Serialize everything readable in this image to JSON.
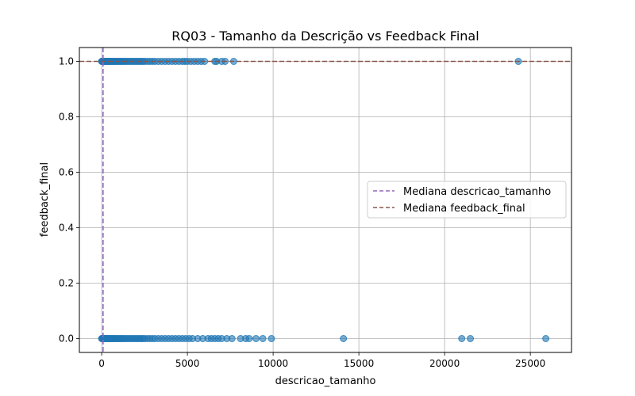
{
  "chart_data": {
    "type": "scatter",
    "title": "RQ03 - Tamanho da Descrição vs Feedback Final",
    "xlabel": "descricao_tamanho",
    "ylabel": "feedback_final",
    "xlim": [
      -1300,
      27400
    ],
    "ylim": [
      -0.05,
      1.05
    ],
    "xticks": [
      0,
      5000,
      10000,
      15000,
      20000,
      25000
    ],
    "xtick_labels": [
      "0",
      "5000",
      "10000",
      "15000",
      "20000",
      "25000"
    ],
    "yticks": [
      0.0,
      0.2,
      0.4,
      0.6,
      0.8,
      1.0
    ],
    "ytick_labels": [
      "0.0",
      "0.2",
      "0.4",
      "0.6",
      "0.8",
      "1.0"
    ],
    "grid": true,
    "legend_placement": "center-right",
    "series": [
      {
        "label": "",
        "color": "#1f77b4",
        "points_feedback_1": [
          0,
          20,
          50,
          80,
          120,
          160,
          200,
          250,
          300,
          350,
          400,
          450,
          500,
          560,
          620,
          680,
          740,
          800,
          870,
          940,
          1000,
          1080,
          1160,
          1240,
          1320,
          1400,
          1500,
          1600,
          1700,
          1800,
          1900,
          2000,
          2100,
          2200,
          2300,
          2400,
          2500,
          2650,
          2800,
          2950,
          3100,
          3300,
          3500,
          3700,
          3900,
          4100,
          4300,
          4500,
          4700,
          4850,
          5000,
          5200,
          5400,
          5600,
          5800,
          6000,
          6600,
          6700,
          7000,
          7200,
          7700,
          24300
        ],
        "points_feedback_0": [
          0,
          20,
          50,
          80,
          120,
          160,
          200,
          250,
          300,
          350,
          400,
          450,
          500,
          560,
          620,
          680,
          740,
          800,
          870,
          940,
          1000,
          1080,
          1160,
          1240,
          1320,
          1400,
          1500,
          1600,
          1700,
          1800,
          1900,
          2000,
          2100,
          2200,
          2300,
          2400,
          2500,
          2650,
          2800,
          2950,
          3100,
          3300,
          3500,
          3700,
          3900,
          4100,
          4300,
          4500,
          4700,
          4900,
          5100,
          5300,
          5600,
          5900,
          6200,
          6400,
          6600,
          6800,
          7000,
          7300,
          7600,
          8100,
          8400,
          8600,
          9000,
          9400,
          9900,
          14100,
          21000,
          21500,
          25900
        ]
      }
    ],
    "reference_lines": [
      {
        "label": "Mediana descricao_tamanho",
        "orientation": "vertical",
        "value": 80,
        "color": "#9467bd",
        "style": "dashed"
      },
      {
        "label": "Mediana feedback_final",
        "orientation": "horizontal",
        "value": 1.0,
        "color": "#8c564b",
        "style": "dashed"
      }
    ]
  }
}
